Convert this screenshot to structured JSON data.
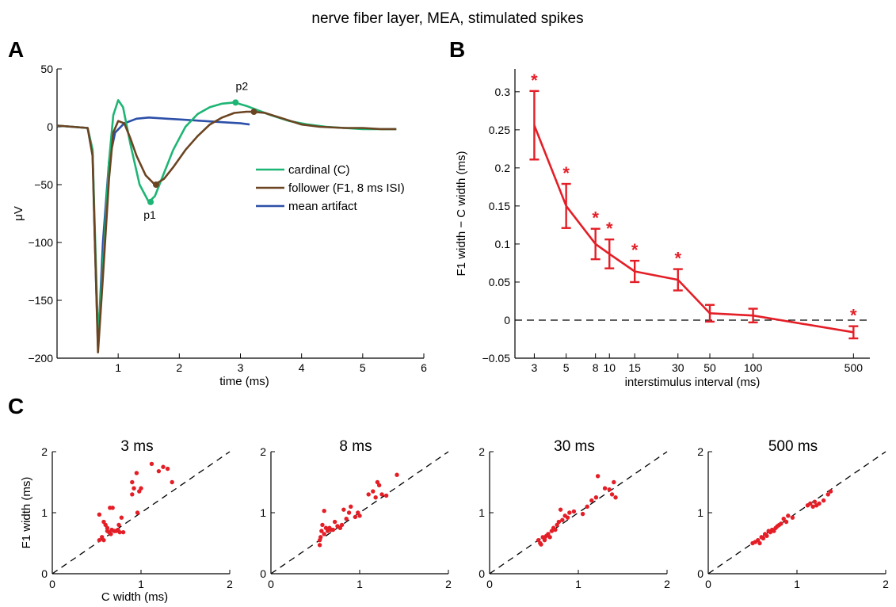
{
  "suptitle": "nerve fiber layer, MEA, stimulated spikes",
  "panels": {
    "a": "A",
    "b": "B",
    "c": "C"
  },
  "colors": {
    "cardinal": "#1db574",
    "follower": "#6b4422",
    "artifact": "#2c4fa8",
    "red": "#e41e26",
    "axis": "#000000"
  },
  "chart_data": [
    {
      "id": "A",
      "type": "line",
      "xlabel": "time (ms)",
      "ylabel": "μV",
      "xlim": [
        0,
        6
      ],
      "ylim": [
        -200,
        50
      ],
      "xticks": [
        1,
        2,
        3,
        4,
        5,
        6
      ],
      "yticks": [
        -200,
        -150,
        -100,
        -50,
        0,
        50
      ],
      "legend_position": "center-right",
      "series": [
        {
          "name": "cardinal (C)",
          "color": "#1db574",
          "x": [
            0.0,
            0.5,
            0.58,
            0.62,
            0.67,
            0.75,
            0.85,
            0.92,
            1.0,
            1.08,
            1.2,
            1.35,
            1.5,
            1.6,
            1.75,
            1.9,
            2.1,
            2.3,
            2.5,
            2.7,
            2.9,
            3.1,
            3.3,
            3.5,
            3.8,
            4.1,
            4.4,
            4.7,
            5.0,
            5.3,
            5.55
          ],
          "y": [
            1,
            -1,
            -20,
            -90,
            -180,
            -120,
            -30,
            10,
            23,
            17,
            -15,
            -50,
            -65,
            -60,
            -40,
            -20,
            0,
            11,
            17,
            20,
            21,
            18,
            14,
            10,
            5,
            2,
            0,
            -1,
            -2,
            -2,
            -2
          ]
        },
        {
          "name": "follower (F1, 8 ms ISI)",
          "color": "#6b4422",
          "x": [
            0.0,
            0.5,
            0.58,
            0.62,
            0.67,
            0.75,
            0.85,
            0.92,
            1.0,
            1.1,
            1.2,
            1.3,
            1.45,
            1.6,
            1.75,
            1.9,
            2.1,
            2.3,
            2.5,
            2.7,
            2.9,
            3.1,
            3.2,
            3.4,
            3.7,
            4.0,
            4.3,
            4.7,
            5.0,
            5.3,
            5.55
          ],
          "y": [
            1,
            -1,
            -25,
            -100,
            -195,
            -130,
            -45,
            -5,
            5,
            3,
            -10,
            -25,
            -42,
            -50,
            -45,
            -35,
            -20,
            -8,
            2,
            8,
            12,
            13,
            13,
            12,
            7,
            2,
            0,
            -1,
            -1,
            -2,
            -2
          ]
        },
        {
          "name": "mean artifact",
          "color": "#2c4fa8",
          "x": [
            0.0,
            0.5,
            0.58,
            0.62,
            0.67,
            0.75,
            0.85,
            0.95,
            1.1,
            1.3,
            1.5,
            1.8,
            2.1,
            2.4,
            2.7,
            3.0,
            3.15
          ],
          "y": [
            1,
            -1,
            -20,
            -100,
            -190,
            -100,
            -30,
            -5,
            3,
            7,
            8,
            7,
            6,
            5,
            4,
            3,
            2
          ]
        }
      ],
      "markers": [
        {
          "label": "p1",
          "series": "cardinal (C)",
          "x": 1.53,
          "y": -65
        },
        {
          "label": "",
          "series": "follower (F1, 8 ms ISI)",
          "x": 1.62,
          "y": -50
        },
        {
          "label": "p2",
          "series": "cardinal (C)",
          "x": 2.92,
          "y": 21
        },
        {
          "label": "",
          "series": "follower (F1, 8 ms ISI)",
          "x": 3.22,
          "y": 13
        }
      ]
    },
    {
      "id": "B",
      "type": "line",
      "xlabel": "interstimulus interval (ms)",
      "ylabel": "F1 width − C width (ms)",
      "x_scale": "log",
      "xlim": [
        2.2,
        650
      ],
      "ylim": [
        -0.05,
        0.33
      ],
      "xticks": [
        3,
        5,
        8,
        10,
        15,
        30,
        50,
        100,
        500
      ],
      "yticks": [
        -0.05,
        0,
        0.05,
        0.1,
        0.15,
        0.2,
        0.25,
        0.3
      ],
      "ytick_labels": [
        "−0.05",
        "0",
        "0.05",
        "0.1",
        "0.15",
        "0.2",
        "0.25",
        "0.3"
      ],
      "zero_line": "dashed",
      "color": "#e41e26",
      "x": [
        3,
        5,
        8,
        10,
        15,
        30,
        50,
        100,
        500
      ],
      "y": [
        0.256,
        0.15,
        0.1,
        0.087,
        0.064,
        0.053,
        0.009,
        0.006,
        -0.016
      ],
      "err": [
        0.045,
        0.029,
        0.02,
        0.019,
        0.014,
        0.014,
        0.011,
        0.009,
        0.008
      ],
      "significant": [
        true,
        true,
        true,
        true,
        true,
        true,
        false,
        false,
        true
      ],
      "significance_marker": "*"
    },
    {
      "id": "C1",
      "type": "scatter",
      "title": "3 ms",
      "xlabel": "C width (ms)",
      "ylabel": "F1 width (ms)",
      "xlim": [
        0,
        2
      ],
      "ylim": [
        0,
        2
      ],
      "xticks": [
        0,
        1,
        2
      ],
      "yticks": [
        0,
        1,
        2
      ],
      "identity_line": "dashed",
      "x": [
        0.53,
        0.53,
        0.56,
        0.58,
        0.6,
        0.62,
        0.64,
        0.65,
        0.67,
        0.68,
        0.7,
        0.72,
        0.74,
        0.76,
        0.78,
        0.8,
        0.58,
        0.62,
        0.66,
        0.7,
        0.75,
        0.9,
        0.92,
        0.95,
        0.98,
        0.9,
        0.96,
        1.0,
        1.12,
        1.2,
        1.25,
        1.3,
        1.35
      ],
      "y": [
        0.55,
        0.97,
        0.6,
        0.85,
        0.8,
        0.7,
        0.68,
        1.08,
        0.72,
        1.08,
        0.7,
        0.7,
        0.72,
        0.68,
        0.92,
        0.68,
        0.55,
        0.75,
        0.65,
        0.7,
        0.8,
        1.3,
        1.4,
        1.65,
        1.35,
        1.5,
        1.0,
        1.4,
        1.8,
        1.68,
        1.75,
        1.72,
        1.5
      ]
    },
    {
      "id": "C2",
      "type": "scatter",
      "title": "8 ms",
      "xlabel": "",
      "ylabel": "",
      "xlim": [
        0,
        2
      ],
      "ylim": [
        0,
        2
      ],
      "xticks": [
        0,
        1,
        2
      ],
      "yticks": [
        0,
        1,
        2
      ],
      "identity_line": "dashed",
      "x": [
        0.55,
        0.55,
        0.56,
        0.57,
        0.58,
        0.6,
        0.62,
        0.64,
        0.66,
        0.7,
        0.72,
        0.75,
        0.78,
        0.8,
        0.82,
        0.85,
        0.88,
        0.9,
        0.95,
        0.98,
        1.0,
        1.1,
        1.15,
        1.18,
        1.2,
        1.22,
        1.25,
        1.3,
        1.42,
        0.6,
        0.68
      ],
      "y": [
        0.47,
        0.55,
        0.6,
        0.7,
        0.8,
        1.03,
        0.75,
        0.7,
        0.75,
        0.72,
        0.85,
        0.78,
        0.75,
        0.8,
        1.05,
        0.9,
        1.0,
        1.1,
        0.93,
        1.0,
        0.95,
        1.3,
        1.35,
        1.25,
        1.5,
        1.45,
        1.3,
        1.28,
        1.62,
        0.65,
        0.72
      ]
    },
    {
      "id": "C3",
      "type": "scatter",
      "title": "30 ms",
      "xlabel": "",
      "ylabel": "",
      "xlim": [
        0,
        2
      ],
      "ylim": [
        0,
        2
      ],
      "xticks": [
        0,
        1,
        2
      ],
      "yticks": [
        0,
        1,
        2
      ],
      "identity_line": "dashed",
      "x": [
        0.55,
        0.57,
        0.6,
        0.62,
        0.64,
        0.66,
        0.68,
        0.7,
        0.72,
        0.74,
        0.76,
        0.78,
        0.8,
        0.82,
        0.85,
        0.88,
        0.9,
        0.95,
        1.05,
        1.1,
        1.15,
        1.2,
        1.22,
        1.3,
        1.35,
        1.4,
        1.38,
        1.42,
        0.58,
        0.62
      ],
      "y": [
        0.55,
        0.5,
        0.6,
        0.55,
        0.62,
        0.65,
        0.6,
        0.7,
        0.75,
        0.72,
        0.8,
        0.85,
        1.05,
        0.88,
        0.95,
        0.92,
        1.0,
        1.02,
        0.98,
        1.1,
        1.2,
        1.25,
        1.6,
        1.4,
        1.38,
        1.5,
        1.3,
        1.25,
        0.48,
        0.57
      ]
    },
    {
      "id": "C4",
      "type": "scatter",
      "title": "500 ms",
      "xlabel": "",
      "ylabel": "",
      "xlim": [
        0,
        2
      ],
      "ylim": [
        0,
        2
      ],
      "xticks": [
        0,
        1,
        2
      ],
      "yticks": [
        0,
        1,
        2
      ],
      "identity_line": "dashed",
      "x": [
        0.5,
        0.53,
        0.56,
        0.58,
        0.6,
        0.62,
        0.64,
        0.66,
        0.68,
        0.7,
        0.72,
        0.74,
        0.76,
        0.78,
        0.8,
        0.82,
        0.85,
        0.88,
        0.9,
        0.95,
        1.12,
        1.15,
        1.18,
        1.2,
        1.22,
        1.25,
        1.3,
        1.35,
        1.38
      ],
      "y": [
        0.5,
        0.52,
        0.55,
        0.5,
        0.6,
        0.58,
        0.65,
        0.62,
        0.7,
        0.68,
        0.72,
        0.7,
        0.75,
        0.78,
        0.8,
        0.82,
        0.9,
        0.85,
        0.95,
        0.92,
        1.12,
        1.15,
        1.1,
        1.18,
        1.12,
        1.15,
        1.2,
        1.3,
        1.35
      ]
    }
  ]
}
